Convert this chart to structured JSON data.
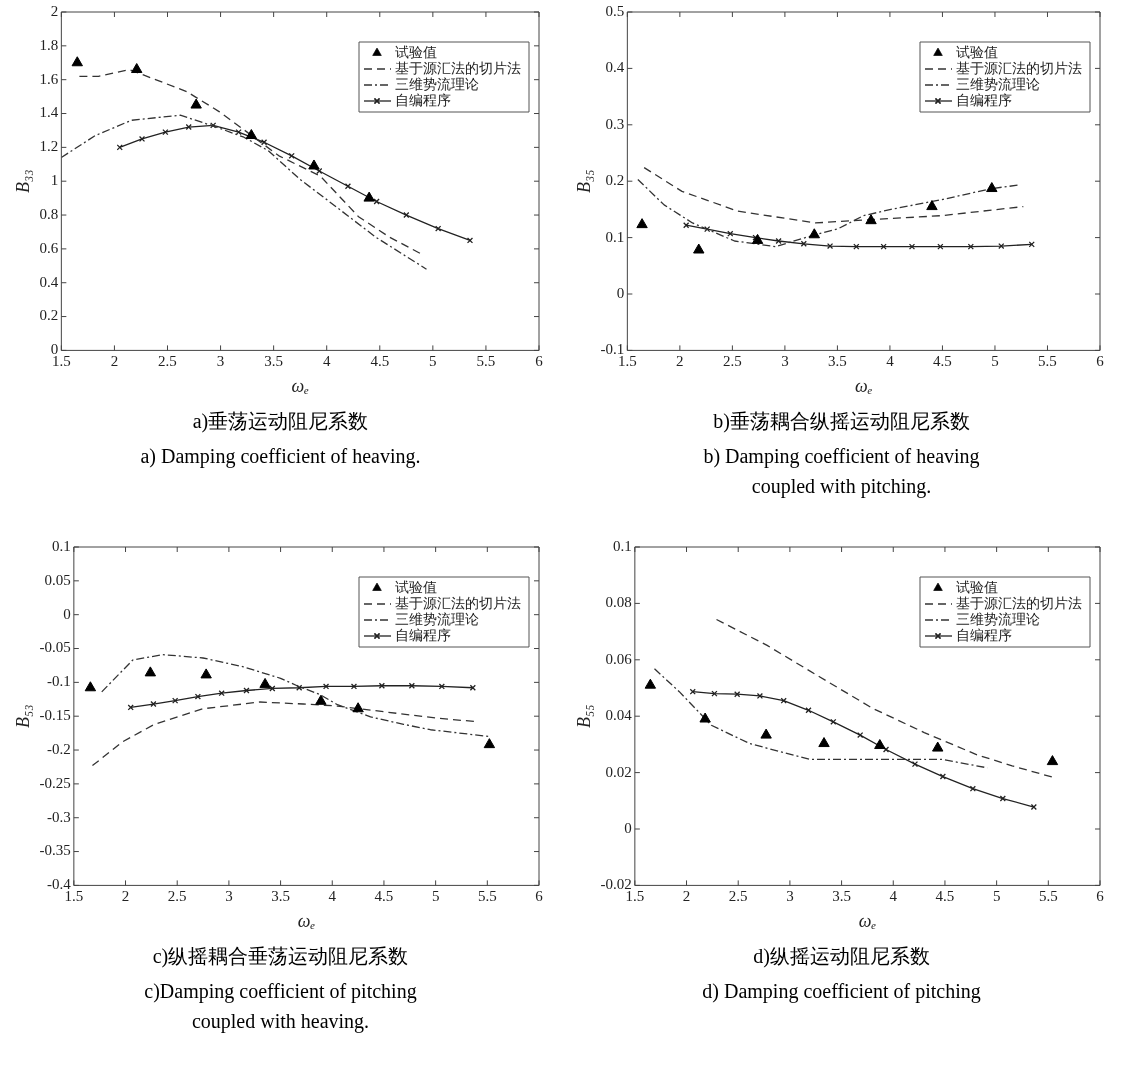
{
  "chart_data": [
    {
      "type": "line",
      "title": "a)垂荡运动阻尼系数",
      "subtitle": "a) Damping coefficient of heaving.",
      "xlabel": "ωₑ",
      "ylabel": "B₃₃",
      "xlim": [
        1.5,
        6
      ],
      "xticks": [
        1.5,
        2,
        2.5,
        3,
        3.5,
        4,
        4.5,
        5,
        5.5,
        6
      ],
      "ylim": [
        0,
        2
      ],
      "yticks": [
        0,
        0.2,
        0.4,
        0.6,
        0.8,
        1,
        1.2,
        1.4,
        1.6,
        1.8,
        2
      ],
      "grid": false,
      "legend": "top right",
      "series": [
        {
          "name": "试验值",
          "type": "scatter",
          "marker": "triangle",
          "color": "#000000",
          "x": [
            1.65,
            2.21,
            2.77,
            3.29,
            3.88,
            4.4
          ],
          "values": [
            1.7,
            1.66,
            1.45,
            1.27,
            1.09,
            0.9
          ]
        },
        {
          "name": "基于源汇法的切片法",
          "marker": "none",
          "line_style": "dashed",
          "color": "#333333",
          "x": [
            1.67,
            1.85,
            2.14,
            2.68,
            2.99,
            3.25,
            3.55,
            3.94,
            4.3,
            4.59,
            4.89
          ],
          "values": [
            1.62,
            1.62,
            1.66,
            1.53,
            1.41,
            1.29,
            1.15,
            1.03,
            0.79,
            0.67,
            0.57
          ]
        },
        {
          "name": "三维势流理论",
          "marker": "none",
          "line_style": "dashdot",
          "color": "#333333",
          "x": [
            1.5,
            1.82,
            2.16,
            2.62,
            2.96,
            3.22,
            3.45,
            3.75,
            3.94,
            4.46,
            4.94
          ],
          "values": [
            1.14,
            1.27,
            1.36,
            1.39,
            1.32,
            1.26,
            1.18,
            1.01,
            0.92,
            0.67,
            0.48
          ]
        },
        {
          "name": "自编程序",
          "marker": "cross",
          "line_style": "solid",
          "color": "#222222",
          "x": [
            2.05,
            2.26,
            2.48,
            2.7,
            2.93,
            3.17,
            3.41,
            3.67,
            3.93,
            4.2,
            4.47,
            4.75,
            5.05,
            5.35
          ],
          "values": [
            1.2,
            1.25,
            1.29,
            1.32,
            1.33,
            1.29,
            1.23,
            1.15,
            1.06,
            0.97,
            0.88,
            0.8,
            0.72,
            0.65
          ]
        }
      ]
    },
    {
      "type": "line",
      "title": "b)垂荡耦合纵摇运动阻尼系数",
      "subtitle": "b) Damping coefficient of heaving coupled with pitching.",
      "xlabel": "ωₑ",
      "ylabel": "B₃₅",
      "xlim": [
        1.5,
        6
      ],
      "xticks": [
        1.5,
        2,
        2.5,
        3,
        3.5,
        4,
        4.5,
        5,
        5.5,
        6
      ],
      "ylim": [
        -0.1,
        0.5
      ],
      "yticks": [
        -0.1,
        0,
        0.1,
        0.2,
        0.3,
        0.4,
        0.5
      ],
      "grid": false,
      "legend": "top right",
      "series": [
        {
          "name": "试验值",
          "type": "scatter",
          "marker": "triangle",
          "color": "#000000",
          "x": [
            1.64,
            2.18,
            2.74,
            3.28,
            3.82,
            4.4,
            4.97
          ],
          "values": [
            0.123,
            0.078,
            0.095,
            0.105,
            0.13,
            0.155,
            0.187
          ]
        },
        {
          "name": "基于源汇法的切片法",
          "marker": "none",
          "line_style": "dashed",
          "color": "#333333",
          "x": [
            1.66,
            2.02,
            2.55,
            3.29,
            3.84,
            4.5,
            5.27
          ],
          "values": [
            0.224,
            0.182,
            0.147,
            0.126,
            0.132,
            0.139,
            0.155
          ]
        },
        {
          "name": "三维势流理论",
          "marker": "none",
          "line_style": "dashdot",
          "color": "#333333",
          "x": [
            1.6,
            1.85,
            2.12,
            2.52,
            2.91,
            3.25,
            3.51,
            3.75,
            4.01,
            4.51,
            4.97,
            5.22
          ],
          "values": [
            0.203,
            0.158,
            0.126,
            0.094,
            0.084,
            0.103,
            0.116,
            0.139,
            0.15,
            0.168,
            0.187,
            0.193
          ]
        },
        {
          "name": "自编程序",
          "marker": "cross",
          "line_style": "solid",
          "color": "#222222",
          "x": [
            2.06,
            2.26,
            2.48,
            2.72,
            2.94,
            3.18,
            3.43,
            3.68,
            3.94,
            4.21,
            4.48,
            4.77,
            5.06,
            5.35
          ],
          "values": [
            0.122,
            0.115,
            0.107,
            0.1,
            0.094,
            0.089,
            0.085,
            0.084,
            0.084,
            0.084,
            0.084,
            0.084,
            0.085,
            0.088
          ]
        }
      ]
    },
    {
      "type": "line",
      "title": "c)纵摇耦合垂荡运动阻尼系数",
      "subtitle": "c)Damping coefficient of pitching coupled with heaving.",
      "xlabel": "ωₑ",
      "ylabel": "B₅₃",
      "xlim": [
        1.5,
        6
      ],
      "xticks": [
        1.5,
        2,
        2.5,
        3,
        3.5,
        4,
        4.5,
        5,
        5.5,
        6
      ],
      "ylim": [
        -0.4,
        0.1
      ],
      "yticks": [
        -0.4,
        -0.35,
        -0.3,
        -0.25,
        -0.2,
        -0.15,
        -0.1,
        -0.05,
        0,
        0.05,
        0.1
      ],
      "grid": false,
      "legend": "top right",
      "series": [
        {
          "name": "试验值",
          "type": "scatter",
          "marker": "triangle",
          "color": "#000000",
          "x": [
            1.66,
            2.24,
            2.78,
            3.35,
            3.89,
            4.25,
            5.52
          ],
          "values": [
            -0.108,
            -0.086,
            -0.089,
            -0.103,
            -0.128,
            -0.139,
            -0.192
          ]
        },
        {
          "name": "基于源汇法的切片法",
          "marker": "none",
          "line_style": "dashed",
          "color": "#333333",
          "x": [
            1.68,
            1.97,
            2.28,
            2.75,
            3.3,
            3.72,
            4.05,
            4.53,
            5.02,
            5.39
          ],
          "values": [
            -0.223,
            -0.188,
            -0.162,
            -0.139,
            -0.129,
            -0.132,
            -0.135,
            -0.144,
            -0.153,
            -0.158
          ]
        },
        {
          "name": "三维势流理论",
          "marker": "none",
          "line_style": "dashdot",
          "color": "#333333",
          "x": [
            1.77,
            2.07,
            2.36,
            2.75,
            3.14,
            3.5,
            3.66,
            3.88,
            4.05,
            4.37,
            4.69,
            4.95,
            5.52
          ],
          "values": [
            -0.114,
            -0.067,
            -0.059,
            -0.064,
            -0.077,
            -0.094,
            -0.105,
            -0.118,
            -0.133,
            -0.151,
            -0.162,
            -0.17,
            -0.18
          ]
        },
        {
          "name": "自编程序",
          "marker": "cross",
          "line_style": "solid",
          "color": "#222222",
          "x": [
            2.05,
            2.27,
            2.48,
            2.7,
            2.93,
            3.17,
            3.42,
            3.68,
            3.94,
            4.21,
            4.48,
            4.77,
            5.06,
            5.36
          ],
          "values": [
            -0.137,
            -0.132,
            -0.127,
            -0.121,
            -0.116,
            -0.112,
            -0.109,
            -0.108,
            -0.106,
            -0.106,
            -0.105,
            -0.105,
            -0.106,
            -0.108
          ]
        }
      ]
    },
    {
      "type": "line",
      "title": "d)纵摇运动阻尼系数",
      "subtitle": "d) Damping coefficient of pitching",
      "xlabel": "ωₑ",
      "ylabel": "B₅₅",
      "xlim": [
        1.5,
        6
      ],
      "xticks": [
        1.5,
        2,
        2.5,
        3,
        3.5,
        4,
        4.5,
        5,
        5.5,
        6
      ],
      "ylim": [
        -0.02,
        0.1
      ],
      "yticks": [
        -0.02,
        0,
        0.02,
        0.04,
        0.06,
        0.08,
        0.1
      ],
      "grid": false,
      "legend": "top right",
      "series": [
        {
          "name": "试验值",
          "type": "scatter",
          "marker": "triangle",
          "color": "#000000",
          "x": [
            1.65,
            2.18,
            2.77,
            3.33,
            3.87,
            4.43,
            5.54
          ],
          "values": [
            0.051,
            0.039,
            0.0333,
            0.0303,
            0.0296,
            0.0287,
            0.0239
          ]
        },
        {
          "name": "基于源汇法的切片法",
          "marker": "none",
          "line_style": "dashed",
          "color": "#333333",
          "x": [
            2.29,
            2.78,
            3.29,
            3.8,
            4.3,
            4.81,
            5.15,
            5.56
          ],
          "values": [
            0.0743,
            0.0651,
            0.0539,
            0.0428,
            0.0342,
            0.0263,
            0.0224,
            0.0182
          ]
        },
        {
          "name": "三维势流理论",
          "marker": "none",
          "line_style": "dashdot",
          "color": "#333333",
          "x": [
            1.69,
            1.93,
            2.24,
            2.61,
            3.19,
            3.63,
            4.47,
            4.91
          ],
          "values": [
            0.0568,
            0.0487,
            0.0368,
            0.0303,
            0.0247,
            0.0247,
            0.0247,
            0.0217
          ]
        },
        {
          "name": "自编程序",
          "marker": "cross",
          "line_style": "solid",
          "color": "#222222",
          "x": [
            2.06,
            2.27,
            2.49,
            2.71,
            2.94,
            3.18,
            3.42,
            3.68,
            3.93,
            4.21,
            4.48,
            4.77,
            5.06,
            5.36
          ],
          "values": [
            0.0487,
            0.048,
            0.0478,
            0.0472,
            0.0455,
            0.0421,
            0.038,
            0.0333,
            0.0282,
            0.023,
            0.0186,
            0.0143,
            0.0108,
            0.0078
          ]
        }
      ]
    }
  ]
}
